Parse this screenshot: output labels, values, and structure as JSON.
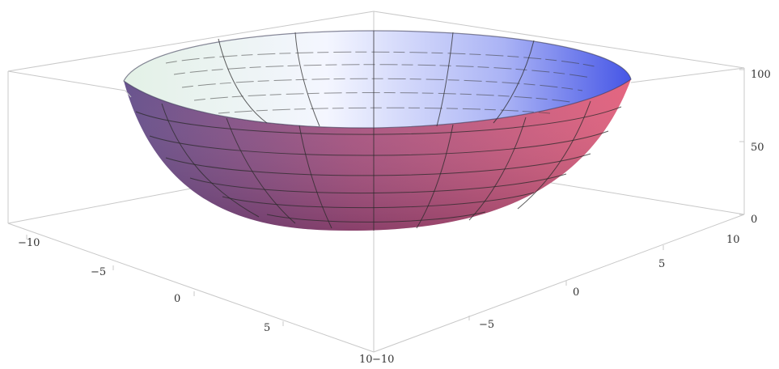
{
  "chart_data": {
    "type": "surface3d",
    "function": "z = x^2 + y^2",
    "x_range": [
      -10,
      10
    ],
    "y_range": [
      -10,
      10
    ],
    "z_range": [
      0,
      100
    ],
    "x_ticks": [
      "−10",
      "−5",
      "0",
      "5",
      "10"
    ],
    "y_ticks": [
      "−10",
      "−5",
      "0",
      "5",
      "10"
    ],
    "z_ticks": [
      "0",
      "50",
      "100"
    ],
    "surface_colors": {
      "outer_low": "#6b4a8e",
      "outer_high": "#d85a7a",
      "inner_left": "#e6f2ea",
      "inner_right": "#4f5fe8"
    },
    "box": true,
    "mesh": true
  }
}
